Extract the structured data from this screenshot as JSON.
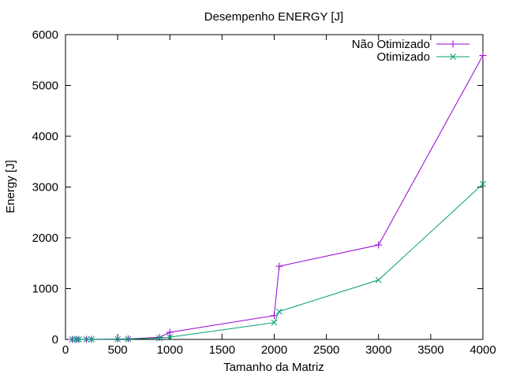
{
  "chart_data": {
    "type": "line",
    "title": "Desempenho ENERGY [J]",
    "xlabel": "Tamanho da Matriz",
    "ylabel": "Energy [J]",
    "xlim": [
      0,
      4000
    ],
    "ylim": [
      0,
      6000
    ],
    "xticks": [
      0,
      500,
      1000,
      1500,
      2000,
      2500,
      3000,
      3500,
      4000
    ],
    "yticks": [
      0,
      1000,
      2000,
      3000,
      4000,
      5000,
      6000
    ],
    "grid": false,
    "legend_position": "top-right",
    "series": [
      {
        "name": "Não Otimizado",
        "color": "#9400d3",
        "marker": "plus",
        "x": [
          64,
          100,
          128,
          200,
          250,
          500,
          600,
          900,
          1000,
          2000,
          2048,
          3000,
          4000
        ],
        "y": [
          0,
          0,
          1,
          2,
          3,
          8,
          12,
          40,
          140,
          470,
          1440,
          1860,
          5590
        ]
      },
      {
        "name": "Otimizado",
        "color": "#009e73",
        "marker": "cross",
        "x": [
          64,
          100,
          128,
          200,
          250,
          500,
          600,
          900,
          1000,
          2000,
          2048,
          3000,
          4000
        ],
        "y": [
          0,
          0,
          0,
          1,
          2,
          5,
          8,
          25,
          45,
          330,
          550,
          1170,
          3060
        ]
      }
    ]
  }
}
